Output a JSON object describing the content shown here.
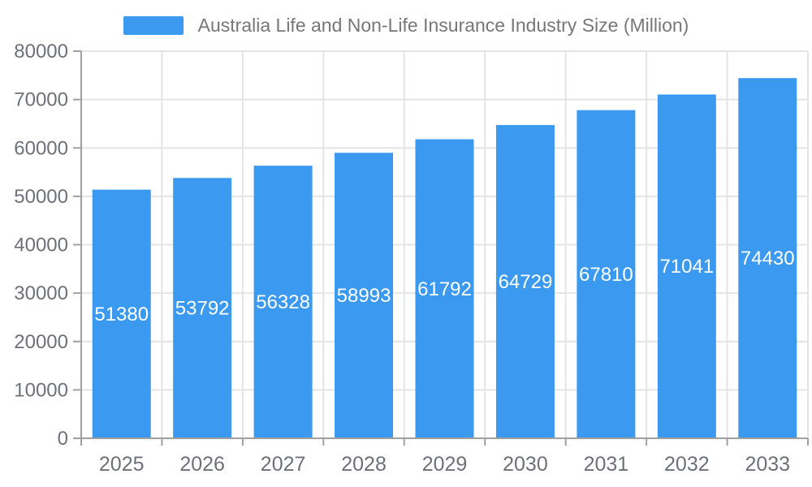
{
  "legend": {
    "label": "Australia Life and Non-Life Insurance Industry Size (Million)"
  },
  "chart_data": {
    "type": "bar",
    "title": "Australia Life and Non-Life Insurance Industry Size (Million)",
    "categories": [
      "2025",
      "2026",
      "2027",
      "2028",
      "2029",
      "2030",
      "2031",
      "2032",
      "2033"
    ],
    "values": [
      51380,
      53792,
      56328,
      58993,
      61792,
      64729,
      67810,
      71041,
      74430
    ],
    "xlabel": "",
    "ylabel": "",
    "ylim": [
      0,
      80000
    ],
    "ytick_step": 10000,
    "yticks": [
      0,
      10000,
      20000,
      30000,
      40000,
      50000,
      60000,
      70000,
      80000
    ],
    "grid": "on",
    "legend_position": "top",
    "colors": {
      "bar": "#3B9AEF",
      "bar_value_label": "#FFFFFF",
      "axis_line": "#A0A0A0",
      "grid_line": "#E4E4E4",
      "axis_text": "#6E7079",
      "legend_text": "#777777"
    }
  }
}
